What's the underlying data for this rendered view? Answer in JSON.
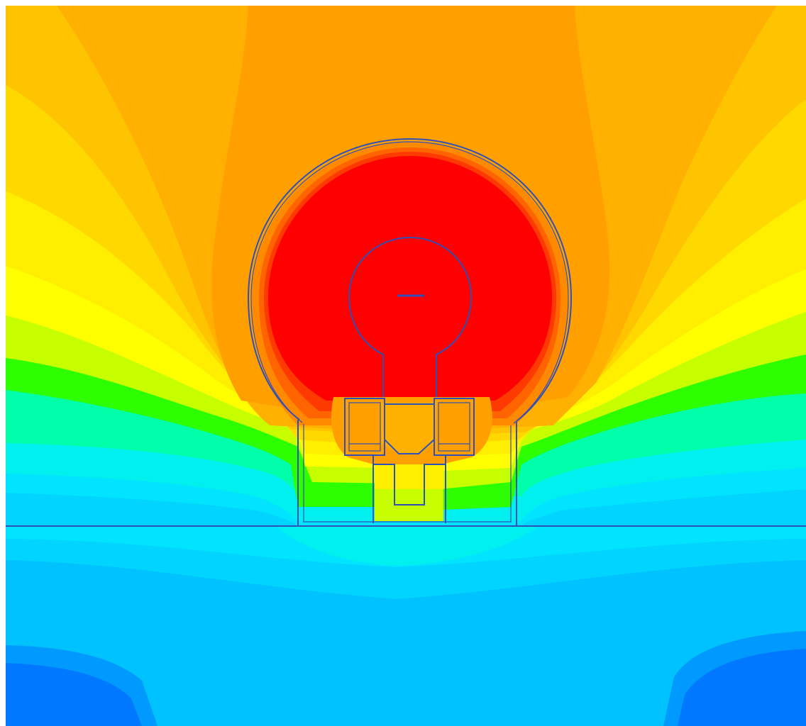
{
  "figure": {
    "kind": "filled-contour field plot with component outline",
    "colormap": "jet",
    "background": "#ffffff",
    "outline_color": "#3050b8",
    "bands_from_high_to_low": [
      "#ff0000",
      "#ff3a00",
      "#ff6400",
      "#ff8a00",
      "#ffa000",
      "#ffb000",
      "#ffc400",
      "#ffd800",
      "#ffee00",
      "#ffff00",
      "#c8ff00",
      "#2dff00",
      "#00ffaa",
      "#00f0f0",
      "#00e4ff",
      "#00d4ff",
      "#00c2ff",
      "#00aeff",
      "#009aff",
      "#0078ff"
    ],
    "visible_text": []
  }
}
